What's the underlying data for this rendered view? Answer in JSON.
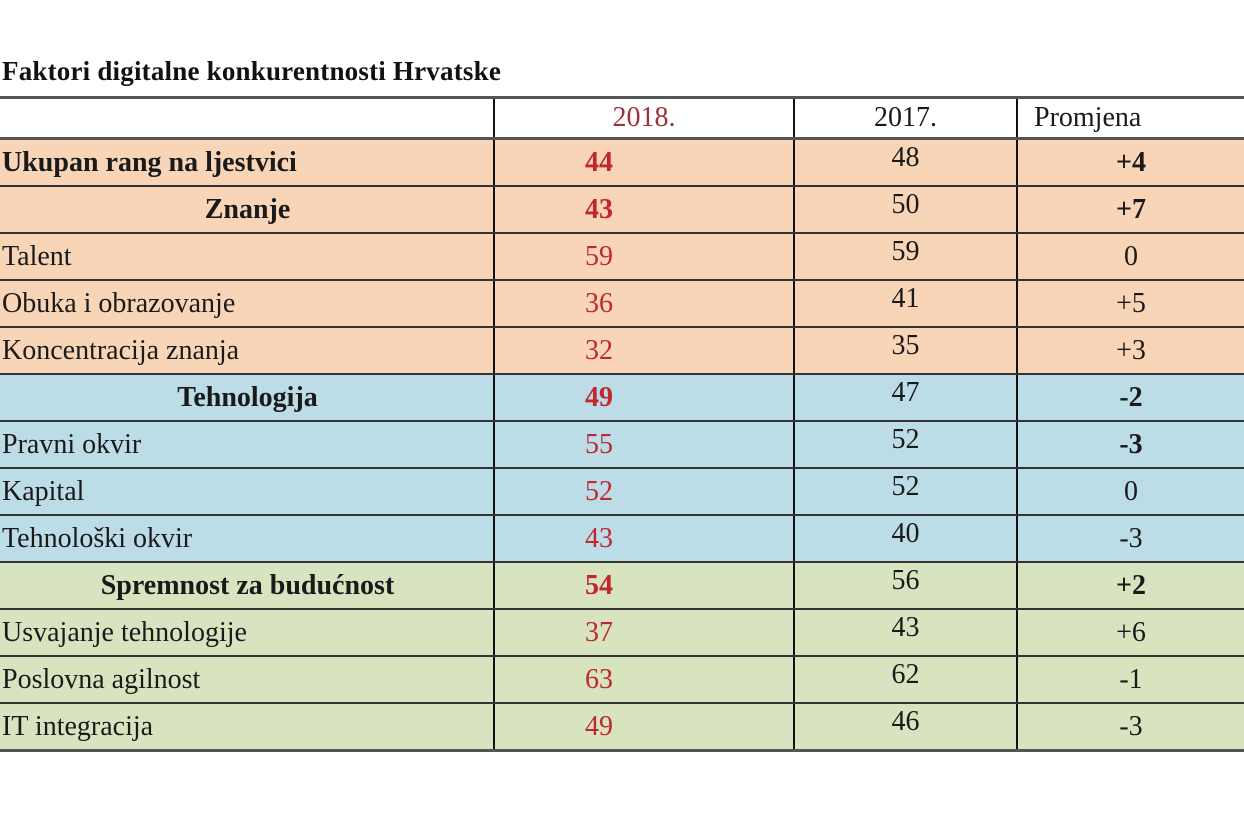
{
  "document": {
    "title": "Faktori digitalne konkurentnosti Hrvatske",
    "colors": {
      "orange_group": "#f9d5b8",
      "blue_group": "#bcdce7",
      "green_group": "#d8e4c0",
      "value_2018": "#c0282e",
      "header_2018": "#a0303c"
    }
  },
  "table": {
    "headers": [
      "",
      "2018.",
      "2017.",
      "Promjena"
    ],
    "rows": [
      {
        "label": "Ukupan rang na ljestvici",
        "v2018": "44",
        "v2017": "48",
        "change": "+4",
        "group": "orange",
        "type": "total"
      },
      {
        "label": "Znanje",
        "v2018": "43",
        "v2017": "50",
        "change": "+7",
        "group": "orange",
        "type": "category"
      },
      {
        "label": "Talent",
        "v2018": "59",
        "v2017": "59",
        "change": "0",
        "group": "orange",
        "type": "sub"
      },
      {
        "label": "Obuka i obrazovanje",
        "v2018": "36",
        "v2017": "41",
        "change": "+5",
        "group": "orange",
        "type": "sub"
      },
      {
        "label": "Koncentracija znanja",
        "v2018": "32",
        "v2017": "35",
        "change": "+3",
        "group": "orange",
        "type": "sub"
      },
      {
        "label": "Tehnologija",
        "v2018": "49",
        "v2017": "47",
        "change": "-2",
        "group": "blue",
        "type": "category"
      },
      {
        "label": "Pravni okvir",
        "v2018": "55",
        "v2017": "52",
        "change": "-3",
        "group": "blue",
        "type": "sub_bold_change"
      },
      {
        "label": "Kapital",
        "v2018": "52",
        "v2017": "52",
        "change": "0",
        "group": "blue",
        "type": "sub"
      },
      {
        "label": "Tehnološki okvir",
        "v2018": "43",
        "v2017": "40",
        "change": "-3",
        "group": "blue",
        "type": "sub"
      },
      {
        "label": "Spremnost za budućnost",
        "v2018": "54",
        "v2017": "56",
        "change": "+2",
        "group": "green",
        "type": "category"
      },
      {
        "label": "Usvajanje tehnologije",
        "v2018": "37",
        "v2017": "43",
        "change": "+6",
        "group": "green",
        "type": "sub"
      },
      {
        "label": "Poslovna agilnost",
        "v2018": "63",
        "v2017": "62",
        "change": "-1",
        "group": "green",
        "type": "sub"
      },
      {
        "label": "IT integracija",
        "v2018": "49",
        "v2017": "46",
        "change": "-3",
        "group": "green",
        "type": "sub"
      }
    ]
  }
}
